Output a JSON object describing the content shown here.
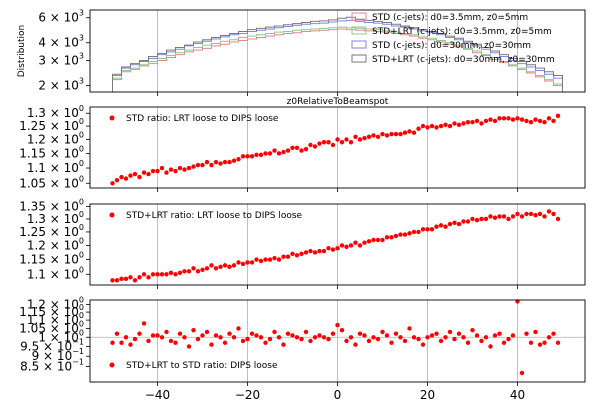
{
  "chart_data": [
    {
      "type": "line",
      "ylabel": "Distribution",
      "title": "",
      "ylog": true,
      "ylim": [
        1800,
        6800
      ],
      "xlim": [
        -55,
        55
      ],
      "yticks": [
        {
          "value": 2000,
          "mant": "2",
          "exp": "3"
        },
        {
          "value": 3000,
          "mant": "3",
          "exp": "3"
        },
        {
          "value": 4000,
          "mant": "4",
          "exp": "3"
        },
        {
          "value": 6000,
          "mant": "6",
          "exp": "3"
        }
      ],
      "bins": {
        "start": -50,
        "end": 50,
        "count": 50
      },
      "grid": true,
      "legend_position": "right",
      "series": [
        {
          "name": "STD (c-jets): d0=3.5mm, z0=5mm",
          "color": "#e8858f",
          "values": [
            2200,
            2500,
            2600,
            2750,
            2850,
            3000,
            3150,
            3300,
            3450,
            3550,
            3650,
            3800,
            3900,
            4050,
            4150,
            4250,
            4350,
            4450,
            4550,
            4650,
            4700,
            4800,
            4850,
            4900,
            4950,
            5000,
            4950,
            4900,
            4850,
            4800,
            4750,
            4650,
            4550,
            4450,
            4300,
            4200,
            4050,
            3900,
            3750,
            3600,
            3400,
            3250,
            3050,
            2900,
            2750,
            2600,
            2450,
            2300,
            2150,
            2000
          ]
        },
        {
          "name": "STD+LRT (c-jets): d0=3.5mm, z0=5mm",
          "color": "#8fc98f",
          "values": [
            2250,
            2550,
            2650,
            2800,
            2950,
            3100,
            3250,
            3400,
            3550,
            3700,
            3850,
            3950,
            4100,
            4200,
            4350,
            4450,
            4550,
            4650,
            4750,
            4800,
            4900,
            4950,
            5000,
            5050,
            5100,
            5150,
            5100,
            5050,
            5000,
            4950,
            4850,
            4750,
            4650,
            4550,
            4400,
            4300,
            4150,
            4000,
            3850,
            3650,
            3500,
            3300,
            3150,
            2950,
            2800,
            2650,
            2500,
            2350,
            2200,
            2050
          ]
        },
        {
          "name": "STD (c-jets): d0=30mm, z0=30mm",
          "color": "#8585e6",
          "values": [
            2350,
            2650,
            2800,
            2950,
            3100,
            3300,
            3450,
            3600,
            3800,
            3950,
            4100,
            4250,
            4400,
            4550,
            4650,
            4800,
            4900,
            5000,
            5100,
            5200,
            5300,
            5400,
            5450,
            5500,
            5600,
            5700,
            5750,
            5650,
            5550,
            5500,
            5400,
            5250,
            5150,
            5000,
            4850,
            4700,
            4550,
            4350,
            4200,
            4000,
            3800,
            3600,
            3400,
            3200,
            3000,
            2850,
            2700,
            2550,
            2400,
            2250
          ]
        },
        {
          "name": "STD+LRT (c-jets): d0=30mm, z0=30mm",
          "color": "#7a7a7a",
          "values": [
            2400,
            2700,
            2850,
            3000,
            3200,
            3350,
            3550,
            3700,
            3850,
            4050,
            4200,
            4350,
            4500,
            4650,
            4800,
            4950,
            5050,
            5150,
            5250,
            5350,
            5450,
            5550,
            5650,
            5700,
            5800,
            5950,
            6050,
            5850,
            5750,
            5650,
            5550,
            5400,
            5250,
            5100,
            4950,
            4800,
            4650,
            4450,
            4300,
            4100,
            3900,
            3700,
            3500,
            3300,
            3100,
            2950,
            2800,
            2650,
            2500,
            2350
          ]
        }
      ]
    },
    {
      "type": "scatter",
      "xlabel": "z0RelativeToBeamspot",
      "ylog": true,
      "ylim": [
        1.035,
        1.325
      ],
      "xlim": [
        -55,
        55
      ],
      "yticks": [
        {
          "value": 1.05,
          "mant": "1.05",
          "exp": "0"
        },
        {
          "value": 1.1,
          "mant": "1.1",
          "exp": "0"
        },
        {
          "value": 1.15,
          "mant": "1.15",
          "exp": "0"
        },
        {
          "value": 1.2,
          "mant": "1.2",
          "exp": "0"
        },
        {
          "value": 1.25,
          "mant": "1.25",
          "exp": "0"
        },
        {
          "value": 1.3,
          "mant": "1.3",
          "exp": "0"
        }
      ],
      "grid": true,
      "legend_position": "top-left",
      "series": [
        {
          "name": "STD ratio: LRT loose to DIPS loose",
          "color": "#ff0000",
          "x": [
            -50,
            -49,
            -48,
            -47,
            -46,
            -45,
            -44,
            -43,
            -42,
            -41,
            -40,
            -39,
            -38,
            -37,
            -36,
            -35,
            -34,
            -33,
            -32,
            -31,
            -30,
            -29,
            -28,
            -27,
            -26,
            -25,
            -24,
            -23,
            -22,
            -21,
            -20,
            -19,
            -18,
            -17,
            -16,
            -15,
            -14,
            -13,
            -12,
            -11,
            -10,
            -9,
            -8,
            -7,
            -6,
            -5,
            -4,
            -3,
            -2,
            -1,
            0,
            1,
            2,
            3,
            4,
            5,
            6,
            7,
            8,
            9,
            10,
            11,
            12,
            13,
            14,
            15,
            16,
            17,
            18,
            19,
            20,
            21,
            22,
            23,
            24,
            25,
            26,
            27,
            28,
            29,
            30,
            31,
            32,
            33,
            34,
            35,
            36,
            37,
            38,
            39,
            40,
            41,
            42,
            43,
            44,
            45,
            46,
            47,
            48,
            49
          ],
          "values": [
            1.05,
            1.06,
            1.07,
            1.065,
            1.075,
            1.08,
            1.07,
            1.085,
            1.08,
            1.09,
            1.09,
            1.1,
            1.085,
            1.095,
            1.09,
            1.1,
            1.095,
            1.1,
            1.105,
            1.11,
            1.11,
            1.12,
            1.11,
            1.12,
            1.115,
            1.12,
            1.12,
            1.125,
            1.13,
            1.14,
            1.14,
            1.14,
            1.145,
            1.145,
            1.15,
            1.15,
            1.16,
            1.15,
            1.155,
            1.16,
            1.17,
            1.17,
            1.16,
            1.165,
            1.18,
            1.175,
            1.185,
            1.19,
            1.19,
            1.18,
            1.2,
            1.19,
            1.2,
            1.19,
            1.21,
            1.2,
            1.205,
            1.21,
            1.215,
            1.21,
            1.22,
            1.215,
            1.22,
            1.22,
            1.22,
            1.225,
            1.23,
            1.225,
            1.24,
            1.25,
            1.245,
            1.25,
            1.245,
            1.25,
            1.255,
            1.25,
            1.26,
            1.255,
            1.26,
            1.265,
            1.265,
            1.27,
            1.26,
            1.27,
            1.275,
            1.27,
            1.28,
            1.28,
            1.28,
            1.275,
            1.28,
            1.275,
            1.27,
            1.265,
            1.275,
            1.27,
            1.265,
            1.28,
            1.27,
            1.29
          ]
        }
      ]
    },
    {
      "type": "scatter",
      "ylog": true,
      "ylim": [
        1.065,
        1.36
      ],
      "xlim": [
        -55,
        55
      ],
      "yticks": [
        {
          "value": 1.1,
          "mant": "1.1",
          "exp": "0"
        },
        {
          "value": 1.15,
          "mant": "1.15",
          "exp": "0"
        },
        {
          "value": 1.2,
          "mant": "1.2",
          "exp": "0"
        },
        {
          "value": 1.25,
          "mant": "1.25",
          "exp": "0"
        },
        {
          "value": 1.3,
          "mant": "1.3",
          "exp": "0"
        },
        {
          "value": 1.35,
          "mant": "1.35",
          "exp": "0"
        }
      ],
      "grid": true,
      "legend_position": "top-left",
      "series": [
        {
          "name": "STD+LRT ratio: LRT loose to DIPS loose",
          "color": "#ff0000",
          "x": [
            -50,
            -49,
            -48,
            -47,
            -46,
            -45,
            -44,
            -43,
            -42,
            -41,
            -40,
            -39,
            -38,
            -37,
            -36,
            -35,
            -34,
            -33,
            -32,
            -31,
            -30,
            -29,
            -28,
            -27,
            -26,
            -25,
            -24,
            -23,
            -22,
            -21,
            -20,
            -19,
            -18,
            -17,
            -16,
            -15,
            -14,
            -13,
            -12,
            -11,
            -10,
            -9,
            -8,
            -7,
            -6,
            -5,
            -4,
            -3,
            -2,
            -1,
            0,
            1,
            2,
            3,
            4,
            5,
            6,
            7,
            8,
            9,
            10,
            11,
            12,
            13,
            14,
            15,
            16,
            17,
            18,
            19,
            20,
            21,
            22,
            23,
            24,
            25,
            26,
            27,
            28,
            29,
            30,
            31,
            32,
            33,
            34,
            35,
            36,
            37,
            38,
            39,
            40,
            41,
            42,
            43,
            44,
            45,
            46,
            47,
            48,
            49
          ],
          "values": [
            1.08,
            1.08,
            1.085,
            1.085,
            1.09,
            1.08,
            1.09,
            1.1,
            1.09,
            1.1,
            1.1,
            1.1,
            1.1,
            1.105,
            1.1,
            1.105,
            1.11,
            1.11,
            1.12,
            1.11,
            1.115,
            1.12,
            1.13,
            1.12,
            1.125,
            1.13,
            1.125,
            1.13,
            1.14,
            1.135,
            1.14,
            1.14,
            1.15,
            1.145,
            1.15,
            1.15,
            1.155,
            1.15,
            1.16,
            1.16,
            1.17,
            1.165,
            1.17,
            1.175,
            1.18,
            1.175,
            1.18,
            1.18,
            1.19,
            1.185,
            1.19,
            1.2,
            1.195,
            1.2,
            1.21,
            1.2,
            1.21,
            1.215,
            1.22,
            1.22,
            1.22,
            1.23,
            1.23,
            1.235,
            1.24,
            1.24,
            1.245,
            1.25,
            1.25,
            1.26,
            1.26,
            1.26,
            1.27,
            1.275,
            1.27,
            1.28,
            1.285,
            1.28,
            1.29,
            1.29,
            1.3,
            1.295,
            1.3,
            1.3,
            1.31,
            1.305,
            1.31,
            1.31,
            1.3,
            1.31,
            1.32,
            1.31,
            1.32,
            1.32,
            1.315,
            1.32,
            1.31,
            1.33,
            1.32,
            1.3
          ]
        }
      ]
    },
    {
      "type": "scatter",
      "ylog": true,
      "ylim": [
        0.78,
        1.23
      ],
      "xlim": [
        -55,
        55
      ],
      "yticks": [
        {
          "value": 0.85,
          "mant": "8.5",
          "exp": "−1"
        },
        {
          "value": 0.9,
          "mant": "9",
          "exp": "−1"
        },
        {
          "value": 0.95,
          "mant": "9.5",
          "exp": "−1"
        },
        {
          "value": 1.0,
          "mant": "1",
          "exp": "0"
        },
        {
          "value": 1.05,
          "mant": "1.05",
          "exp": "0"
        },
        {
          "value": 1.1,
          "mant": "1.1",
          "exp": "0"
        },
        {
          "value": 1.15,
          "mant": "1.15",
          "exp": "0"
        },
        {
          "value": 1.2,
          "mant": "1.2",
          "exp": "0"
        }
      ],
      "hline": 1.0,
      "grid": true,
      "legend_position": "bottom-left",
      "xticks": [
        -40,
        -20,
        0,
        20,
        40
      ],
      "series": [
        {
          "name": "STD+LRT to STD ratio: DIPS loose",
          "color": "#ff0000",
          "x": [
            -50,
            -49,
            -48,
            -47,
            -46,
            -45,
            -44,
            -43,
            -42,
            -41,
            -40,
            -39,
            -38,
            -37,
            -36,
            -35,
            -34,
            -33,
            -32,
            -31,
            -30,
            -29,
            -28,
            -27,
            -26,
            -25,
            -24,
            -23,
            -22,
            -21,
            -20,
            -19,
            -18,
            -17,
            -16,
            -15,
            -14,
            -13,
            -12,
            -11,
            -10,
            -9,
            -8,
            -7,
            -6,
            -5,
            -4,
            -3,
            -2,
            -1,
            0,
            1,
            2,
            3,
            4,
            5,
            6,
            7,
            8,
            9,
            10,
            11,
            12,
            13,
            14,
            15,
            16,
            17,
            18,
            19,
            20,
            21,
            22,
            23,
            24,
            25,
            26,
            27,
            28,
            29,
            30,
            31,
            32,
            33,
            34,
            35,
            36,
            37,
            38,
            39,
            40,
            41,
            42,
            43,
            44,
            45,
            46,
            47,
            48,
            49
          ],
          "values": [
            0.97,
            1.02,
            0.97,
            1.0,
            0.96,
            0.99,
            1.02,
            1.08,
            0.98,
            1.01,
            1.01,
            1.0,
            1.03,
            0.98,
            0.97,
            1.02,
            1.0,
            0.95,
            1.04,
            0.99,
            1.01,
            1.03,
            0.96,
            1.01,
            1.0,
            0.97,
            1.02,
            1.0,
            1.05,
            0.98,
            0.99,
            1.02,
            1.01,
            1.0,
            0.97,
            0.99,
            1.03,
            1.0,
            0.96,
            1.02,
            1.01,
            1.0,
            0.99,
            1.03,
            0.98,
            1.0,
            1.01,
            1.0,
            0.99,
            1.02,
            1.07,
            1.04,
            0.98,
            1.0,
            0.96,
            1.02,
            1.01,
            0.98,
            1.0,
            0.99,
            1.03,
            1.01,
            0.97,
            1.02,
            1.0,
            0.98,
            1.05,
            1.0,
            0.99,
            0.96,
            1.0,
            1.01,
            1.02,
            0.98,
            1.0,
            1.03,
            0.99,
            1.02,
            1.0,
            0.97,
            1.04,
            1.01,
            0.98,
            1.0,
            0.95,
            1.01,
            1.02,
            0.97,
            0.99,
            1.01,
            1.22,
            0.82,
            1.02,
            0.97,
            1.03,
            0.96,
            0.97,
            1.0,
            1.02,
            0.97
          ]
        }
      ]
    }
  ]
}
